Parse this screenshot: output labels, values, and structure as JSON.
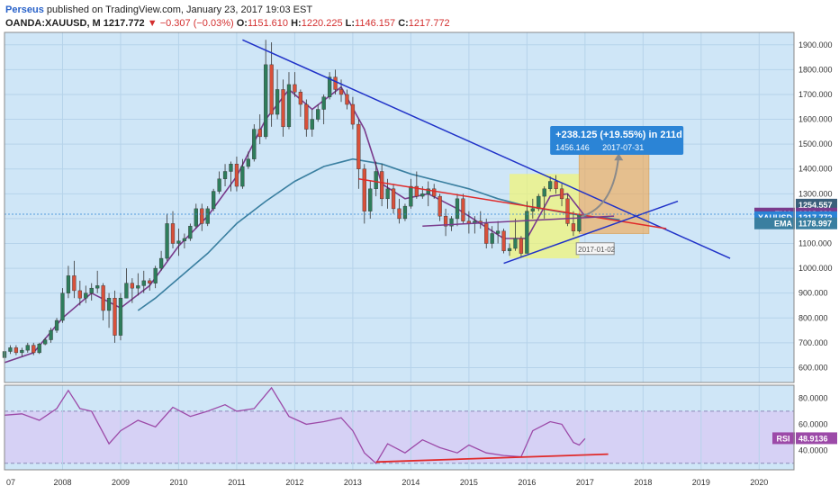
{
  "header": {
    "author": "Perseus",
    "published": "published on TradingView.com, January 23, 2017 19:03 EST",
    "symbol": "OANDA:XAUUSD, M",
    "last": "1217.772",
    "change": "−0.307 (−0.03%)",
    "open_label": "O:",
    "open": "1151.610",
    "high_label": "H:",
    "high": "1220.225",
    "low_label": "L:",
    "low": "1146.157",
    "close_label": "C:",
    "close": "1217.772"
  },
  "colors": {
    "background": "#cfe6f7",
    "up": "#2e7d5b",
    "down": "#d8503a",
    "trendline": "#2032c8",
    "red_line": "#e02a2a",
    "ema": "#3a7fa0",
    "fma": "#7a3b8c",
    "rsi": "#9c4aa8",
    "rsi_band": "#d7ccf4",
    "target": "#f4a64a",
    "highlight": "#f2f570",
    "price_marker": "#2b84d6"
  },
  "chart_data": {
    "type": "candlestick",
    "x_ticks": [
      "07",
      "2008",
      "2009",
      "2010",
      "2011",
      "2012",
      "2013",
      "2014",
      "2015",
      "2016",
      "2017",
      "2018",
      "2019",
      "2020"
    ],
    "y_ticks": [
      "1900.000",
      "1800.000",
      "1700.000",
      "1600.000",
      "1500.000",
      "1400.000",
      "1300.000",
      "1200.000",
      "1100.000",
      "1000.000",
      "900.000",
      "800.000",
      "700.000",
      "600.000"
    ],
    "ylim": [
      540,
      1950
    ],
    "xlim": [
      2007.0,
      2020.6
    ],
    "series_ohlc": [
      [
        2007.0,
        640,
        675,
        635,
        665
      ],
      [
        2007.1,
        665,
        690,
        655,
        680
      ],
      [
        2007.2,
        680,
        690,
        650,
        660
      ],
      [
        2007.3,
        660,
        680,
        645,
        670
      ],
      [
        2007.4,
        670,
        700,
        660,
        690
      ],
      [
        2007.5,
        690,
        700,
        650,
        660
      ],
      [
        2007.6,
        660,
        700,
        655,
        695
      ],
      [
        2007.7,
        695,
        720,
        690,
        712
      ],
      [
        2007.8,
        712,
        760,
        700,
        750
      ],
      [
        2007.9,
        750,
        800,
        740,
        790
      ],
      [
        2008.0,
        790,
        920,
        780,
        900
      ],
      [
        2008.1,
        900,
        1010,
        880,
        970
      ],
      [
        2008.2,
        970,
        1030,
        880,
        910
      ],
      [
        2008.3,
        910,
        950,
        850,
        880
      ],
      [
        2008.4,
        880,
        930,
        860,
        900
      ],
      [
        2008.5,
        900,
        940,
        870,
        920
      ],
      [
        2008.6,
        920,
        990,
        900,
        930
      ],
      [
        2008.7,
        930,
        940,
        790,
        830
      ],
      [
        2008.8,
        830,
        900,
        760,
        880
      ],
      [
        2008.9,
        880,
        910,
        700,
        730
      ],
      [
        2009.0,
        730,
        900,
        710,
        880
      ],
      [
        2009.1,
        880,
        1000,
        880,
        940
      ],
      [
        2009.2,
        940,
        960,
        860,
        920
      ],
      [
        2009.3,
        920,
        980,
        890,
        930
      ],
      [
        2009.4,
        930,
        990,
        900,
        950
      ],
      [
        2009.5,
        950,
        960,
        910,
        940
      ],
      [
        2009.6,
        940,
        1010,
        920,
        1000
      ],
      [
        2009.7,
        1000,
        1070,
        990,
        1040
      ],
      [
        2009.8,
        1040,
        1220,
        1030,
        1180
      ],
      [
        2009.9,
        1180,
        1230,
        1080,
        1100
      ],
      [
        2010.0,
        1100,
        1160,
        1050,
        1110
      ],
      [
        2010.1,
        1110,
        1140,
        1080,
        1120
      ],
      [
        2010.2,
        1120,
        1180,
        1110,
        1170
      ],
      [
        2010.3,
        1170,
        1260,
        1160,
        1240
      ],
      [
        2010.4,
        1240,
        1260,
        1150,
        1180
      ],
      [
        2010.5,
        1180,
        1250,
        1170,
        1240
      ],
      [
        2010.6,
        1240,
        1320,
        1230,
        1310
      ],
      [
        2010.7,
        1310,
        1390,
        1300,
        1360
      ],
      [
        2010.8,
        1360,
        1420,
        1330,
        1390
      ],
      [
        2010.9,
        1390,
        1430,
        1310,
        1420
      ],
      [
        2011.0,
        1420,
        1450,
        1310,
        1330
      ],
      [
        2011.1,
        1330,
        1440,
        1320,
        1410
      ],
      [
        2011.2,
        1410,
        1470,
        1400,
        1440
      ],
      [
        2011.3,
        1440,
        1580,
        1430,
        1560
      ],
      [
        2011.4,
        1560,
        1620,
        1500,
        1530
      ],
      [
        2011.5,
        1530,
        1920,
        1520,
        1820
      ],
      [
        2011.6,
        1820,
        1910,
        1570,
        1620
      ],
      [
        2011.7,
        1620,
        1800,
        1600,
        1720
      ],
      [
        2011.8,
        1720,
        1760,
        1530,
        1570
      ],
      [
        2011.9,
        1570,
        1790,
        1560,
        1740
      ],
      [
        2012.0,
        1740,
        1790,
        1690,
        1710
      ],
      [
        2012.1,
        1710,
        1720,
        1610,
        1660
      ],
      [
        2012.2,
        1660,
        1680,
        1530,
        1560
      ],
      [
        2012.3,
        1560,
        1640,
        1530,
        1600
      ],
      [
        2012.4,
        1600,
        1660,
        1590,
        1640
      ],
      [
        2012.5,
        1640,
        1700,
        1580,
        1690
      ],
      [
        2012.6,
        1690,
        1790,
        1680,
        1770
      ],
      [
        2012.7,
        1770,
        1800,
        1700,
        1720
      ],
      [
        2012.8,
        1720,
        1760,
        1670,
        1700
      ],
      [
        2012.9,
        1700,
        1720,
        1640,
        1660
      ],
      [
        2013.0,
        1660,
        1690,
        1560,
        1580
      ],
      [
        2013.1,
        1580,
        1600,
        1320,
        1400
      ],
      [
        2013.2,
        1400,
        1420,
        1180,
        1230
      ],
      [
        2013.3,
        1230,
        1350,
        1200,
        1320
      ],
      [
        2013.4,
        1320,
        1430,
        1290,
        1390
      ],
      [
        2013.5,
        1390,
        1420,
        1250,
        1280
      ],
      [
        2013.6,
        1280,
        1360,
        1240,
        1320
      ],
      [
        2013.7,
        1320,
        1340,
        1220,
        1240
      ],
      [
        2013.8,
        1240,
        1280,
        1180,
        1200
      ],
      [
        2013.9,
        1200,
        1260,
        1190,
        1250
      ],
      [
        2014.0,
        1250,
        1360,
        1240,
        1330
      ],
      [
        2014.1,
        1330,
        1390,
        1280,
        1290
      ],
      [
        2014.2,
        1290,
        1330,
        1280,
        1300
      ],
      [
        2014.3,
        1300,
        1350,
        1250,
        1320
      ],
      [
        2014.4,
        1320,
        1340,
        1280,
        1290
      ],
      [
        2014.5,
        1290,
        1300,
        1190,
        1210
      ],
      [
        2014.6,
        1210,
        1240,
        1130,
        1170
      ],
      [
        2014.7,
        1170,
        1210,
        1150,
        1200
      ],
      [
        2014.8,
        1200,
        1300,
        1170,
        1280
      ],
      [
        2014.9,
        1280,
        1300,
        1180,
        1190
      ],
      [
        2015.0,
        1190,
        1230,
        1140,
        1180
      ],
      [
        2015.1,
        1180,
        1210,
        1140,
        1190
      ],
      [
        2015.2,
        1190,
        1230,
        1160,
        1180
      ],
      [
        2015.3,
        1180,
        1200,
        1080,
        1100
      ],
      [
        2015.4,
        1100,
        1170,
        1080,
        1140
      ],
      [
        2015.5,
        1140,
        1190,
        1100,
        1150
      ],
      [
        2015.6,
        1150,
        1160,
        1060,
        1070
      ],
      [
        2015.7,
        1070,
        1100,
        1050,
        1080
      ],
      [
        2015.8,
        1080,
        1200,
        1070,
        1120
      ],
      [
        2015.9,
        1120,
        1130,
        1045,
        1060
      ],
      [
        2016.0,
        1060,
        1270,
        1060,
        1230
      ],
      [
        2016.1,
        1230,
        1280,
        1200,
        1240
      ],
      [
        2016.2,
        1240,
        1300,
        1230,
        1290
      ],
      [
        2016.3,
        1290,
        1330,
        1200,
        1320
      ],
      [
        2016.4,
        1320,
        1370,
        1310,
        1350
      ],
      [
        2016.5,
        1350,
        1375,
        1300,
        1320
      ],
      [
        2016.6,
        1320,
        1340,
        1250,
        1280
      ],
      [
        2016.7,
        1280,
        1300,
        1170,
        1180
      ],
      [
        2016.8,
        1180,
        1230,
        1130,
        1150
      ],
      [
        2016.9,
        1150,
        1220,
        1145,
        1215
      ]
    ],
    "ema_line": [
      [
        2009.3,
        830
      ],
      [
        2009.6,
        880
      ],
      [
        2010.0,
        960
      ],
      [
        2010.5,
        1060
      ],
      [
        2011.0,
        1180
      ],
      [
        2011.5,
        1270
      ],
      [
        2012.0,
        1350
      ],
      [
        2012.5,
        1410
      ],
      [
        2013.0,
        1440
      ],
      [
        2013.5,
        1420
      ],
      [
        2014.0,
        1380
      ],
      [
        2014.5,
        1350
      ],
      [
        2015.0,
        1320
      ],
      [
        2015.5,
        1280
      ],
      [
        2016.0,
        1250
      ],
      [
        2016.5,
        1230
      ],
      [
        2017.0,
        1210
      ],
      [
        2017.3,
        1205
      ],
      [
        2017.6,
        1195
      ]
    ],
    "fma_line": [
      [
        2007.0,
        620
      ],
      [
        2007.5,
        660
      ],
      [
        2008.0,
        800
      ],
      [
        2008.5,
        900
      ],
      [
        2009.0,
        840
      ],
      [
        2009.5,
        930
      ],
      [
        2010.0,
        1090
      ],
      [
        2010.5,
        1210
      ],
      [
        2011.0,
        1370
      ],
      [
        2011.5,
        1600
      ],
      [
        2011.9,
        1720
      ],
      [
        2012.3,
        1640
      ],
      [
        2012.8,
        1730
      ],
      [
        2013.2,
        1560
      ],
      [
        2013.5,
        1340
      ],
      [
        2013.9,
        1280
      ],
      [
        2014.3,
        1300
      ],
      [
        2014.8,
        1240
      ],
      [
        2015.2,
        1180
      ],
      [
        2015.6,
        1120
      ],
      [
        2016.0,
        1120
      ],
      [
        2016.4,
        1290
      ],
      [
        2016.7,
        1300
      ],
      [
        2017.0,
        1210
      ]
    ],
    "trendlines": [
      {
        "from": [
          2011.1,
          1920
        ],
        "to": [
          2019.5,
          1040
        ],
        "color": "trendline"
      },
      {
        "from": [
          2013.1,
          1360
        ],
        "to": [
          2018.4,
          1160
        ],
        "color": "red_line"
      },
      {
        "from": [
          2015.6,
          1020
        ],
        "to": [
          2018.6,
          1270
        ],
        "color": "trendline"
      },
      {
        "from": [
          2014.2,
          1170
        ],
        "to": [
          2017.5,
          1210
        ],
        "color": "fma"
      }
    ],
    "target_box": {
      "x_from": 2016.9,
      "x_to": 2018.1,
      "y_from": 1140,
      "y_to": 1470
    },
    "highlight_box": {
      "x_from": 2015.7,
      "x_to": 2016.9,
      "y_from": 1040,
      "y_to": 1380
    },
    "target_label": {
      "text": "+238.125 (+19.55%) in 211d",
      "sub": "1456.146",
      "date": "2017-07-31"
    },
    "date_tag": "2017-01-02",
    "right_labels": [
      {
        "name": "",
        "value": "1254.557",
        "y": 1254.557
      },
      {
        "name": "FMA",
        "value": "1218.636",
        "y": 1218.636
      },
      {
        "name": "XAUUSD",
        "value": "1217.772",
        "y": 1204
      },
      {
        "name": "EMA",
        "value": "1178.997",
        "y": 1178.997
      }
    ],
    "rsi": {
      "ylim": [
        25,
        90
      ],
      "y_ticks": [
        "80.0000",
        "60.0000",
        "40.0000"
      ],
      "band": [
        30,
        70
      ],
      "label": "RSI",
      "value": "48.9136",
      "line": [
        [
          2007.0,
          67
        ],
        [
          2007.3,
          68
        ],
        [
          2007.6,
          63
        ],
        [
          2007.9,
          72
        ],
        [
          2008.1,
          86
        ],
        [
          2008.3,
          72
        ],
        [
          2008.5,
          70
        ],
        [
          2008.8,
          45
        ],
        [
          2009.0,
          55
        ],
        [
          2009.3,
          63
        ],
        [
          2009.6,
          58
        ],
        [
          2009.9,
          73
        ],
        [
          2010.2,
          66
        ],
        [
          2010.5,
          70
        ],
        [
          2010.8,
          75
        ],
        [
          2011.0,
          70
        ],
        [
          2011.3,
          72
        ],
        [
          2011.6,
          88
        ],
        [
          2011.9,
          66
        ],
        [
          2012.2,
          60
        ],
        [
          2012.5,
          62
        ],
        [
          2012.8,
          65
        ],
        [
          2013.0,
          55
        ],
        [
          2013.2,
          38
        ],
        [
          2013.4,
          30
        ],
        [
          2013.6,
          45
        ],
        [
          2013.9,
          38
        ],
        [
          2014.2,
          48
        ],
        [
          2014.5,
          42
        ],
        [
          2014.8,
          38
        ],
        [
          2015.0,
          44
        ],
        [
          2015.3,
          38
        ],
        [
          2015.6,
          36
        ],
        [
          2015.9,
          35
        ],
        [
          2016.1,
          55
        ],
        [
          2016.4,
          62
        ],
        [
          2016.6,
          60
        ],
        [
          2016.8,
          46
        ],
        [
          2016.9,
          44
        ],
        [
          2017.0,
          49
        ]
      ],
      "support_line": {
        "from": [
          2013.4,
          31
        ],
        "to": [
          2017.4,
          37
        ]
      }
    }
  }
}
